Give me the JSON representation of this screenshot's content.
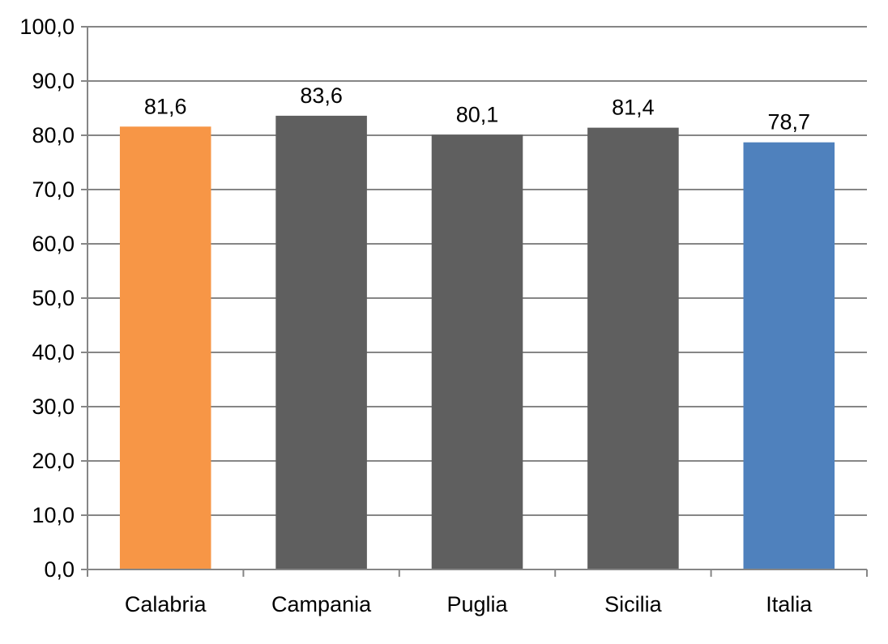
{
  "chart_data": {
    "type": "bar",
    "categories": [
      "Calabria",
      "Campania",
      "Puglia",
      "Sicilia",
      "Italia"
    ],
    "values": [
      81.6,
      83.6,
      80.1,
      81.4,
      78.7
    ],
    "data_labels": [
      "81,6",
      "83,6",
      "80,1",
      "81,4",
      "78,7"
    ],
    "bar_colors": [
      "#F79646",
      "#5F5F5F",
      "#5F5F5F",
      "#5F5F5F",
      "#4F81BD"
    ],
    "ylim": [
      0,
      100
    ],
    "yticks": [
      0,
      10,
      20,
      30,
      40,
      50,
      60,
      70,
      80,
      90,
      100
    ],
    "ytick_labels": [
      "0,0",
      "10,0",
      "20,0",
      "30,0",
      "40,0",
      "50,0",
      "60,0",
      "70,0",
      "80,0",
      "90,0",
      "100,0"
    ],
    "grid": true,
    "legend": "none",
    "grid_color": "#868686",
    "axis_color": "#868686"
  }
}
